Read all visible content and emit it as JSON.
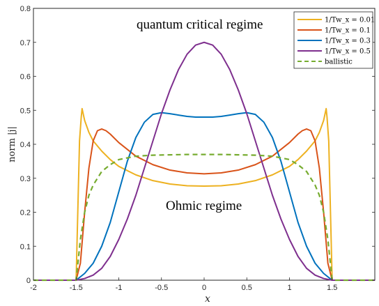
{
  "chart_data": {
    "type": "line",
    "xlabel": "x",
    "ylabel": "norm |j|",
    "xlim": [
      -2,
      2
    ],
    "ylim": [
      0,
      0.8
    ],
    "xticks": [
      "-2",
      "-1.5",
      "-1",
      "-0.5",
      "0",
      "0.5",
      "1",
      "1.5"
    ],
    "yticks": [
      "0",
      "0.1",
      "0.2",
      "0.3",
      "0.4",
      "0.5",
      "0.6",
      "0.7",
      "0.8"
    ],
    "grid": false,
    "legend_position": "top-right",
    "annotations": [
      "quantum critical regime",
      "Ohmic regime"
    ],
    "colors": {
      "s001": "#EDB120",
      "s01": "#D95319",
      "s03": "#0072BD",
      "s05": "#7E2F8E",
      "ballistic": "#77AC30"
    },
    "series": [
      {
        "name": "1/Tw_x = 0.01",
        "color": "#EDB120",
        "dashed": false,
        "x": [
          -1.5,
          -1.46,
          -1.44,
          -1.43,
          -1.4,
          -1.35,
          -1.3,
          -1.2,
          -1.1,
          -1.0,
          -0.8,
          -0.6,
          -0.4,
          -0.2,
          0,
          0.2,
          0.4,
          0.6,
          0.8,
          1.0,
          1.1,
          1.2,
          1.3,
          1.35,
          1.4,
          1.43,
          1.44,
          1.46,
          1.5
        ],
        "y": [
          0,
          0.41,
          0.48,
          0.505,
          0.47,
          0.435,
          0.41,
          0.38,
          0.355,
          0.335,
          0.31,
          0.293,
          0.283,
          0.278,
          0.277,
          0.278,
          0.283,
          0.293,
          0.31,
          0.335,
          0.355,
          0.38,
          0.41,
          0.435,
          0.47,
          0.505,
          0.48,
          0.41,
          0
        ]
      },
      {
        "name": "1/Tw_x = 0.1",
        "color": "#D95319",
        "dashed": false,
        "x": [
          -1.5,
          -1.45,
          -1.4,
          -1.35,
          -1.3,
          -1.25,
          -1.2,
          -1.15,
          -1.1,
          -1.0,
          -0.9,
          -0.8,
          -0.6,
          -0.4,
          -0.2,
          0,
          0.2,
          0.4,
          0.6,
          0.8,
          0.9,
          1.0,
          1.1,
          1.15,
          1.2,
          1.25,
          1.3,
          1.35,
          1.4,
          1.45,
          1.5
        ],
        "y": [
          0,
          0.05,
          0.2,
          0.33,
          0.41,
          0.44,
          0.445,
          0.44,
          0.43,
          0.405,
          0.385,
          0.365,
          0.34,
          0.324,
          0.316,
          0.313,
          0.316,
          0.324,
          0.34,
          0.365,
          0.385,
          0.405,
          0.43,
          0.44,
          0.445,
          0.44,
          0.41,
          0.33,
          0.2,
          0.05,
          0
        ]
      },
      {
        "name": "1/Tw_x = 0.3",
        "color": "#0072BD",
        "dashed": false,
        "x": [
          -1.5,
          -1.4,
          -1.3,
          -1.2,
          -1.1,
          -1.0,
          -0.9,
          -0.8,
          -0.7,
          -0.6,
          -0.5,
          -0.4,
          -0.3,
          -0.2,
          -0.1,
          0,
          0.1,
          0.2,
          0.3,
          0.4,
          0.5,
          0.6,
          0.7,
          0.8,
          0.9,
          1.0,
          1.1,
          1.2,
          1.3,
          1.4,
          1.5
        ],
        "y": [
          0,
          0.02,
          0.05,
          0.1,
          0.17,
          0.26,
          0.35,
          0.42,
          0.465,
          0.488,
          0.493,
          0.49,
          0.486,
          0.482,
          0.48,
          0.48,
          0.48,
          0.482,
          0.486,
          0.49,
          0.493,
          0.488,
          0.465,
          0.42,
          0.35,
          0.26,
          0.17,
          0.1,
          0.05,
          0.02,
          0
        ]
      },
      {
        "name": "1/Tw_x = 0.5",
        "color": "#7E2F8E",
        "dashed": false,
        "x": [
          -1.5,
          -1.4,
          -1.3,
          -1.2,
          -1.1,
          -1.0,
          -0.9,
          -0.8,
          -0.7,
          -0.6,
          -0.5,
          -0.4,
          -0.3,
          -0.2,
          -0.1,
          0,
          0.1,
          0.2,
          0.3,
          0.4,
          0.5,
          0.6,
          0.7,
          0.8,
          0.9,
          1.0,
          1.1,
          1.2,
          1.3,
          1.4,
          1.5
        ],
        "y": [
          0,
          0.005,
          0.015,
          0.035,
          0.07,
          0.12,
          0.18,
          0.25,
          0.33,
          0.41,
          0.49,
          0.56,
          0.62,
          0.665,
          0.692,
          0.7,
          0.692,
          0.665,
          0.62,
          0.56,
          0.49,
          0.41,
          0.33,
          0.25,
          0.18,
          0.12,
          0.07,
          0.035,
          0.015,
          0.005,
          0
        ]
      },
      {
        "name": "ballistic",
        "color": "#77AC30",
        "dashed": true,
        "x": [
          -1.5,
          -1.45,
          -1.4,
          -1.35,
          -1.3,
          -1.25,
          -1.2,
          -1.1,
          -1.0,
          -0.8,
          -0.6,
          -0.4,
          -0.2,
          0,
          0.2,
          0.4,
          0.6,
          0.8,
          1.0,
          1.1,
          1.2,
          1.25,
          1.3,
          1.35,
          1.4,
          1.45,
          1.5
        ],
        "y": [
          0,
          0.12,
          0.2,
          0.25,
          0.28,
          0.3,
          0.32,
          0.34,
          0.355,
          0.365,
          0.368,
          0.369,
          0.37,
          0.37,
          0.37,
          0.369,
          0.368,
          0.365,
          0.355,
          0.34,
          0.32,
          0.3,
          0.28,
          0.25,
          0.2,
          0.12,
          0
        ]
      }
    ]
  }
}
